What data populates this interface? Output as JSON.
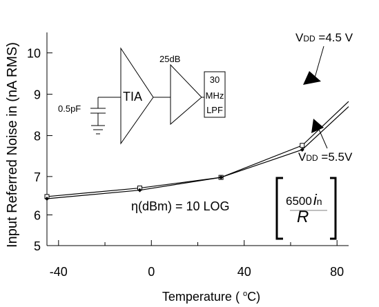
{
  "chart_data": {
    "type": "line",
    "xlabel": "Temperature",
    "xlabel_unit_open": "( ",
    "xlabel_unit_sup": "o",
    "xlabel_unit_rest": "C)",
    "ylabel": "Input Referred Noise in (nA RMS)",
    "xlim": [
      -45,
      85
    ],
    "ylim": [
      5,
      10
    ],
    "x_ticks": [
      -40,
      0,
      40,
      80
    ],
    "y_ticks": [
      5,
      6,
      7,
      8,
      9,
      10
    ],
    "y_tick_positions": [
      5,
      5.72,
      6.62,
      7.58,
      8.55,
      9.52
    ],
    "grid": false,
    "series": [
      {
        "name": "VDD =4.5 V",
        "x": [
          -45,
          -5,
          30,
          65,
          85
        ],
        "y": [
          6.15,
          6.35,
          6.6,
          7.35,
          8.38
        ],
        "marker": "square"
      },
      {
        "name": "VDD =5.5V",
        "x": [
          -45,
          -5,
          30,
          65,
          85
        ],
        "y": [
          6.1,
          6.3,
          6.6,
          7.25,
          8.26
        ],
        "marker": "diamond"
      }
    ],
    "annotations": {
      "vdd45_prefix": "V",
      "vdd45_sub": "DD",
      "vdd45_value": " =4.5 V",
      "vdd55_prefix": "V",
      "vdd55_sub": "DD",
      "vdd55_value": " =5.5V",
      "formula": "η(dBm) = 10 LOG",
      "bracket_number": "6500",
      "bracket_i": "i",
      "bracket_i_sub": "n",
      "bracket_r": "R"
    },
    "inset_circuit": {
      "capacitor_label": "0.5pF",
      "tia_label": "TIA",
      "gain_label": "25dB",
      "filter_lines": [
        "30",
        "MHz",
        "LPF"
      ]
    }
  }
}
